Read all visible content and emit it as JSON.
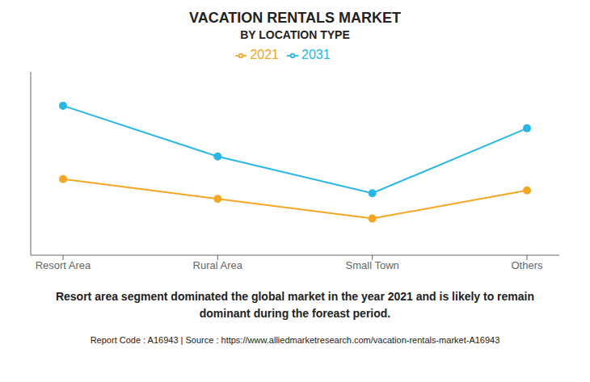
{
  "chart_data": {
    "type": "line",
    "title": "VACATION RENTALS MARKET",
    "subtitle": "BY LOCATION TYPE",
    "categories": [
      "Resort Area",
      "Rural Area",
      "Small Town",
      "Others"
    ],
    "series": [
      {
        "name": "2021",
        "color": "#F5A623",
        "values": [
          0.62,
          0.55,
          0.48,
          0.58
        ],
        "marker": "circle"
      },
      {
        "name": "2031",
        "color": "#29B6E8",
        "values": [
          0.88,
          0.7,
          0.57,
          0.8
        ],
        "marker": "circle"
      }
    ],
    "ylim": [
      0.35,
      1.0
    ],
    "yticks": [],
    "tick_labels": "x",
    "annotations": [
      "Resort area segment dominated the global market in the year 2021 and is likely to remain\ndominant during the foreast period.",
      "Report Code : A16943  |  Source : https://www.alliedmarketresearch.com/vacation-rentals-market-A16943"
    ]
  }
}
